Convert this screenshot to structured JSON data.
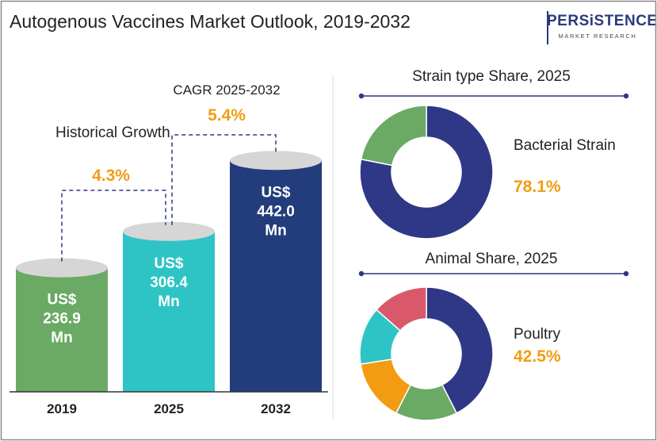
{
  "title": "Autogenous Vaccines Market Outlook, 2019-2032",
  "logo": {
    "name": "PERSiSTENCE",
    "tagline": "MARKET RESEARCH"
  },
  "colors": {
    "bar_2019": "#6aaa64",
    "bar_2025": "#2ec4c6",
    "bar_2032": "#233d7c",
    "accent": "#f39c12",
    "navy": "#2f3787",
    "dash": "#2f3787"
  },
  "chart_data": [
    {
      "type": "bar",
      "categories": [
        "2019",
        "2025",
        "2032"
      ],
      "values": [
        236.9,
        306.4,
        442.0
      ],
      "value_labels": [
        {
          "prefix": "US$",
          "number": "236.9",
          "unit": "Mn"
        },
        {
          "prefix": "US$",
          "number": "306.4",
          "unit": "Mn"
        },
        {
          "prefix": "US$",
          "number": "442.0",
          "unit": "Mn"
        }
      ],
      "annotations": [
        {
          "label": "Historical Growth",
          "value": "4.3%"
        },
        {
          "label": "CAGR 2025-2032",
          "value": "5.4%"
        }
      ]
    },
    {
      "type": "pie",
      "title": "Strain type Share, 2025",
      "slices": [
        {
          "value": 78.1,
          "color": "#2f3787"
        },
        {
          "value": 21.9,
          "color": "#6aaa64"
        }
      ],
      "highlight": {
        "name": "Bacterial Strain",
        "value": "78.1%"
      }
    },
    {
      "type": "pie",
      "title": "Animal Share, 2025",
      "slices": [
        {
          "value": 42.5,
          "color": "#2f3787"
        },
        {
          "value": 15.0,
          "color": "#6aaa64"
        },
        {
          "value": 15.0,
          "color": "#f39c12"
        },
        {
          "value": 14.0,
          "color": "#2ec4c6"
        },
        {
          "value": 13.5,
          "color": "#d9596a"
        }
      ],
      "highlight": {
        "name": "Poultry",
        "value": "42.5%"
      }
    }
  ]
}
